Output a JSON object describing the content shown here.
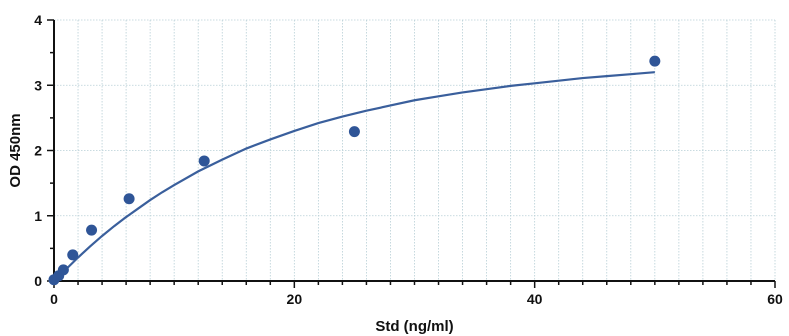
{
  "chart_data": {
    "type": "scatter",
    "title": "",
    "xlabel": "Std (ng/ml)",
    "ylabel": "OD 450nm",
    "xlim": [
      0,
      60
    ],
    "ylim": [
      0,
      4
    ],
    "xticks": [
      0,
      20,
      40,
      60
    ],
    "yticks": [
      0,
      1,
      2,
      3,
      4
    ],
    "grid": true,
    "legend": "none",
    "colors": {
      "points": "#2f5597",
      "curve": "#3a5f9c",
      "axis": "#111111",
      "grid": "#b8cfd6"
    },
    "series": [
      {
        "points": [
          {
            "x": 0,
            "y": 0.02
          },
          {
            "x": 0.39,
            "y": 0.08
          },
          {
            "x": 0.78,
            "y": 0.17
          },
          {
            "x": 1.56,
            "y": 0.4
          },
          {
            "x": 3.125,
            "y": 0.78
          },
          {
            "x": 6.25,
            "y": 1.26
          },
          {
            "x": 12.5,
            "y": 1.84
          },
          {
            "x": 25,
            "y": 2.29
          },
          {
            "x": 50,
            "y": 3.37
          }
        ]
      }
    ],
    "fit_curve": {
      "x": [
        0,
        1,
        2,
        3,
        4,
        5,
        6,
        7,
        8,
        9,
        10,
        12,
        14,
        16,
        18,
        20,
        22,
        24,
        26,
        28,
        30,
        32,
        34,
        36,
        38,
        40,
        42,
        44,
        46,
        48,
        50
      ],
      "y": [
        0.0,
        0.18,
        0.36,
        0.53,
        0.69,
        0.84,
        0.98,
        1.11,
        1.24,
        1.36,
        1.47,
        1.68,
        1.86,
        2.03,
        2.17,
        2.3,
        2.42,
        2.52,
        2.61,
        2.69,
        2.77,
        2.83,
        2.89,
        2.94,
        2.99,
        3.03,
        3.07,
        3.11,
        3.14,
        3.17,
        3.2
      ]
    }
  }
}
